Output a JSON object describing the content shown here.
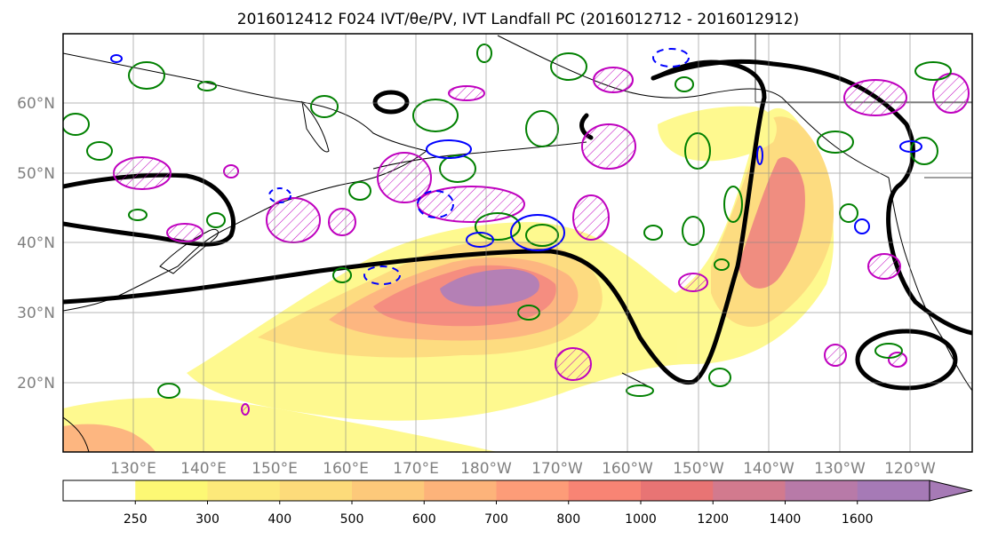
{
  "title": "2016012412 F024 IVT/θe/PV, IVT Landfall PC (2016012712 - 2016012912)",
  "axes": {
    "lat_labels": [
      "20°N",
      "30°N",
      "40°N",
      "50°N",
      "60°N"
    ],
    "lon_labels": [
      "130°E",
      "140°E",
      "150°E",
      "160°E",
      "170°E",
      "180°W",
      "170°W",
      "160°W",
      "150°W",
      "140°W",
      "130°W",
      "120°W"
    ],
    "grid": true,
    "label_color": "#7f7f7f"
  },
  "colorbar": {
    "orientation": "horizontal",
    "extend": "max",
    "levels": [
      250,
      300,
      400,
      500,
      600,
      700,
      800,
      1000,
      1200,
      1400,
      1600
    ],
    "tick_labels": [
      "250",
      "300",
      "400",
      "500",
      "600",
      "700",
      "800",
      "1000",
      "1200",
      "1400",
      "1600"
    ],
    "colors": [
      "#ffffff",
      "#fdf874",
      "#fde97a",
      "#fddb7a",
      "#fdc97a",
      "#fdb37a",
      "#fd9c78",
      "#f88474",
      "#e87474",
      "#d27a8e",
      "#b87aa8",
      "#a67ab6"
    ]
  },
  "legend_colors": {
    "pc_contour": "#000000",
    "pv_contour": "#0000ff",
    "theta_e_contour": "#008000",
    "ivt_landfall_contour": "#bf00bf"
  }
}
